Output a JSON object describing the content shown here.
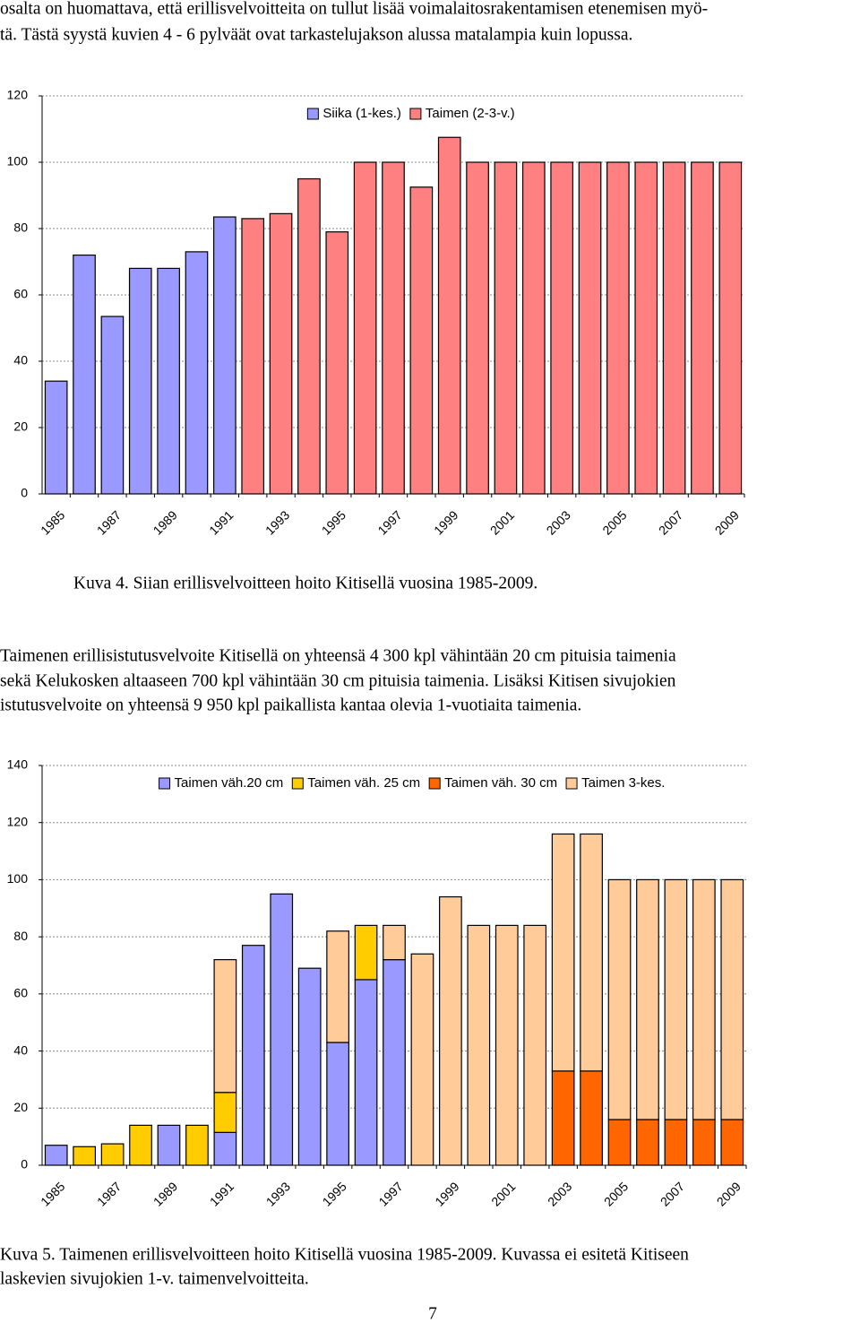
{
  "intro_lines": [
    "osalta on huomattava, että erillisvelvoitteita on tullut lisää voimalaitosrakentamisen etenemisen myö-",
    "tä. Tästä syystä kuvien 4 - 6 pylväät ovat tarkastelujakson alussa matalampia kuin lopussa."
  ],
  "chart_data": [
    {
      "type": "bar",
      "stacked": true,
      "legend": "top",
      "categories": [
        "1985",
        null,
        "1987",
        null,
        "1989",
        null,
        "1991",
        null,
        "1993",
        null,
        "1995",
        null,
        "1997",
        null,
        "1999",
        null,
        "2001",
        null,
        "2003",
        null,
        "2005",
        null,
        "2007",
        null,
        "2009"
      ],
      "series": [
        {
          "name": "Siika (1-kes.)",
          "color": "#9999ff",
          "values": [
            34,
            72,
            53.5,
            68,
            68,
            73,
            83.5,
            null,
            null,
            null,
            null,
            null,
            null,
            null,
            null,
            null,
            null,
            null,
            null,
            null,
            null,
            null,
            null,
            null,
            null
          ]
        },
        {
          "name": "Taimen (2-3-v.)",
          "color": "#ff8080",
          "values": [
            null,
            null,
            null,
            null,
            null,
            null,
            null,
            83,
            84.5,
            95,
            79,
            100,
            100,
            92.5,
            107.5,
            100,
            100,
            100,
            100,
            100,
            100,
            100,
            100,
            100,
            100
          ]
        }
      ],
      "ylim": [
        0,
        120
      ],
      "yticks": [
        0,
        20,
        40,
        60,
        80,
        100,
        120
      ],
      "grid": true
    },
    {
      "type": "bar",
      "stacked": true,
      "legend": "top",
      "categories": [
        "1985",
        null,
        "1987",
        null,
        "1989",
        null,
        "1991",
        null,
        "1993",
        null,
        "1995",
        null,
        "1997",
        null,
        "1999",
        null,
        "2001",
        null,
        "2003",
        null,
        "2005",
        null,
        "2007",
        null,
        "2009"
      ],
      "series": [
        {
          "name": "Taimen väh.20 cm",
          "color": "#9999ff",
          "values": [
            7,
            null,
            null,
            null,
            14,
            null,
            11.5,
            77,
            95,
            69,
            43,
            65,
            72,
            null,
            null,
            null,
            null,
            null,
            null,
            null,
            null,
            null,
            null,
            null,
            null
          ]
        },
        {
          "name": "Taimen väh. 25 cm",
          "color": "#ffcc00",
          "values": [
            null,
            6.5,
            7.5,
            14,
            null,
            14,
            14,
            null,
            null,
            null,
            null,
            19,
            null,
            null,
            null,
            null,
            null,
            null,
            null,
            null,
            null,
            null,
            null,
            null,
            null
          ]
        },
        {
          "name": "Taimen väh. 30 cm",
          "color": "#ff6600",
          "values": [
            null,
            null,
            null,
            null,
            null,
            null,
            null,
            null,
            null,
            null,
            null,
            null,
            null,
            null,
            null,
            null,
            null,
            null,
            33,
            33,
            16,
            16,
            16,
            16,
            16
          ]
        },
        {
          "name": "Taimen 3-kes.",
          "color": "#ffcc99",
          "values": [
            null,
            null,
            null,
            null,
            null,
            null,
            46.5,
            null,
            null,
            null,
            39,
            null,
            12,
            74,
            94,
            84,
            84,
            84,
            83,
            83,
            84,
            84,
            84,
            84,
            84
          ]
        }
      ],
      "ylim": [
        0,
        140
      ],
      "yticks": [
        0,
        20,
        40,
        60,
        80,
        100,
        120,
        140
      ],
      "grid": true
    }
  ],
  "figure_4_caption": "Kuva 4. Siian erillisvelvoitteen hoito Kitisellä vuosina 1985-2009.",
  "paragraph_lines": [
    "Taimenen erillisistutusvelvoite Kitisellä on yhteensä 4 300 kpl vähintään 20 cm pituisia taimenia",
    "sekä Kelukosken altaaseen 700 kpl vähintään 30 cm pituisia taimenia. Lisäksi Kitisen sivujokien",
    "istutusvelvoite on yhteensä 9 950 kpl paikallista kantaa olevia 1-vuotiaita taimenia."
  ],
  "figure_5_caption_lines": [
    "Kuva 5. Taimenen erillisvelvoitteen hoito Kitisellä vuosina 1985-2009. Kuvassa ei esitetä Kitiseen",
    "laskevien sivujokien 1-v. taimenvelvoitteita."
  ],
  "page_number": "7"
}
